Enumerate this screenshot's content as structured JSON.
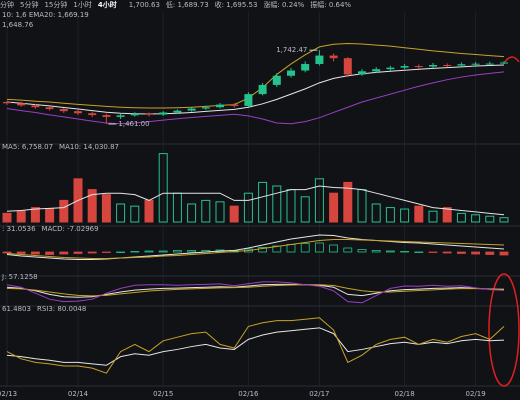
{
  "header": {
    "tabs": [
      "分钟",
      "5分钟",
      "15分钟",
      "1小时",
      "4小时"
    ],
    "stats": [
      "1,700.63",
      "低: 1,689.73",
      "收: 1,695.53",
      "涨幅: 0.24%",
      "振幅: 0.64%"
    ]
  },
  "chart_data": [
    {
      "type": "candlestick",
      "legend_texts": [
        "10: 1,6 EMA20: 1,669.19",
        "1,648.76"
      ],
      "up_color": "#26c28d",
      "down_color": "#d6463f",
      "categories": [
        "02/13",
        null,
        null,
        null,
        null,
        "02/14",
        null,
        null,
        null,
        null,
        null,
        "02/15",
        null,
        null,
        null,
        null,
        null,
        "02/16",
        null,
        null,
        null,
        null,
        "02/17",
        null,
        null,
        null,
        null,
        null,
        "02/18",
        null,
        null,
        null,
        null,
        "02/19",
        null,
        null
      ],
      "open": [
        1545,
        1540,
        1532,
        1525,
        1518,
        1510,
        1502,
        1495,
        1488,
        1494,
        1500,
        1497,
        1505,
        1512,
        1520,
        1525,
        1535,
        1530,
        1575,
        1610,
        1645,
        1665,
        1690,
        1722,
        1712,
        1650,
        1662,
        1670,
        1676,
        1682,
        1680,
        1686,
        1684,
        1689,
        1691,
        1691.47
      ],
      "high": [
        1550,
        1546,
        1538,
        1530,
        1522,
        1515,
        1508,
        1500,
        1499,
        1506,
        1505,
        1510,
        1517,
        1526,
        1531,
        1541,
        1540,
        1582,
        1618,
        1655,
        1675,
        1700,
        1742.47,
        1730,
        1716,
        1670,
        1678,
        1683,
        1690,
        1688,
        1694,
        1692,
        1696,
        1698,
        1699,
        1700.63
      ],
      "low": [
        1534,
        1527,
        1519,
        1512,
        1503,
        1495,
        1488,
        1461,
        1480,
        1489,
        1490,
        1492,
        1500,
        1508,
        1515,
        1520,
        1524,
        1526,
        1570,
        1602,
        1638,
        1658,
        1684,
        1700,
        1640,
        1645,
        1655,
        1664,
        1670,
        1672,
        1675,
        1678,
        1679,
        1683,
        1685,
        1689.73
      ],
      "close": [
        1540,
        1532,
        1525,
        1518,
        1510,
        1502,
        1495,
        1488,
        1494,
        1500,
        1497,
        1505,
        1512,
        1520,
        1525,
        1535,
        1530,
        1575,
        1610,
        1645,
        1665,
        1690,
        1722,
        1712,
        1650,
        1662,
        1670,
        1676,
        1682,
        1680,
        1686,
        1684,
        1689,
        1691,
        1691.47,
        1695.53
      ],
      "annotations": [
        {
          "label": "1,742.47",
          "value": 1742.47
        },
        {
          "label": "1,461.00",
          "value": 1461
        }
      ],
      "ylim": [
        1400,
        1850
      ],
      "series": [
        {
          "color": "#c9a227",
          "values": [
            1555,
            1552,
            1548,
            1545,
            1540,
            1536,
            1532,
            1528,
            1525,
            1523,
            1522,
            1522,
            1523,
            1525,
            1528,
            1532,
            1535,
            1560,
            1600,
            1650,
            1690,
            1725,
            1755,
            1765,
            1768,
            1766,
            1762,
            1758,
            1752,
            1746,
            1740,
            1735,
            1730,
            1726,
            1722,
            1718
          ]
        },
        {
          "color": "#e6e6e6",
          "values": [
            1545,
            1540,
            1535,
            1530,
            1524,
            1518,
            1512,
            1506,
            1502,
            1500,
            1499,
            1500,
            1502,
            1505,
            1509,
            1513,
            1517,
            1525,
            1538,
            1555,
            1575,
            1595,
            1618,
            1635,
            1645,
            1652,
            1658,
            1662,
            1666,
            1670,
            1673,
            1676,
            1679,
            1682,
            1684,
            1686
          ]
        },
        {
          "color": "#9b3fc4",
          "values": [
            1520,
            1512,
            1505,
            1496,
            1488,
            1480,
            1472,
            1465,
            1462,
            1465,
            1470,
            1476,
            1481,
            1486,
            1490,
            1494,
            1498,
            1492,
            1480,
            1465,
            1462,
            1470,
            1485,
            1505,
            1525,
            1545,
            1560,
            1575,
            1590,
            1605,
            1618,
            1630,
            1640,
            1648,
            1654,
            1660
          ]
        }
      ]
    },
    {
      "type": "volume",
      "legend_texts": [
        "MA5: 6,758.07",
        "MA10: 14,030.87"
      ],
      "ylim": [
        0,
        100
      ],
      "values": [
        12,
        15,
        20,
        18,
        30,
        60,
        45,
        38,
        25,
        22,
        30,
        95,
        40,
        25,
        30,
        28,
        22,
        40,
        55,
        50,
        45,
        35,
        60,
        40,
        55,
        45,
        25,
        20,
        18,
        22,
        15,
        20,
        12,
        10,
        8,
        6
      ],
      "series": [
        {
          "color": "#e6e6e6",
          "values": [
            15,
            16,
            18,
            19,
            20,
            30,
            38,
            40,
            40,
            38,
            30,
            40,
            40,
            40,
            40,
            40,
            30,
            30,
            35,
            40,
            45,
            45,
            50,
            48,
            47,
            45,
            40,
            35,
            30,
            25,
            20,
            18,
            16,
            14,
            12,
            10
          ]
        }
      ]
    },
    {
      "type": "macd",
      "legend_texts": [
        ": 31.0536",
        "MACD: -7.02969"
      ],
      "ylim": [
        -40,
        40
      ],
      "values": [
        -2,
        -3,
        -4,
        -5,
        -4,
        -3,
        -2,
        -1,
        0,
        1,
        2,
        2,
        3,
        3,
        3,
        4,
        3,
        6,
        9,
        12,
        15,
        17,
        18,
        14,
        8,
        5,
        3,
        2,
        1,
        0,
        -1,
        -2,
        -3,
        -4,
        -5,
        -6
      ],
      "series": [
        {
          "color": "#e6e6e6",
          "values": [
            -5,
            -8,
            -10,
            -12,
            -14,
            -15,
            -15,
            -14,
            -12,
            -10,
            -8,
            -6,
            -4,
            -2,
            0,
            2,
            3,
            8,
            14,
            20,
            26,
            30,
            34,
            33,
            28,
            25,
            23,
            21,
            19,
            18,
            16,
            14,
            12,
            10,
            8,
            6
          ]
        },
        {
          "color": "#c9a227",
          "values": [
            -3,
            -5,
            -7,
            -9,
            -11,
            -12,
            -13,
            -13,
            -12,
            -11,
            -10,
            -8,
            -7,
            -5,
            -3,
            -1,
            1,
            3,
            7,
            11,
            15,
            19,
            23,
            25,
            25,
            24,
            23,
            22,
            21,
            20,
            19,
            18,
            17,
            16,
            15,
            14
          ]
        }
      ]
    },
    {
      "type": "line",
      "legend_texts": [
        "J: 57.1258"
      ],
      "ylim": [
        0,
        100
      ],
      "series": [
        {
          "color": "#e6e6e6",
          "values": [
            70,
            65,
            55,
            40,
            30,
            28,
            30,
            40,
            50,
            58,
            62,
            65,
            66,
            68,
            70,
            72,
            70,
            75,
            80,
            82,
            82,
            80,
            78,
            70,
            40,
            35,
            45,
            55,
            60,
            62,
            65,
            66,
            68,
            65,
            62,
            60
          ]
        },
        {
          "color": "#c9a227",
          "values": [
            65,
            63,
            58,
            50,
            42,
            36,
            34,
            36,
            42,
            48,
            54,
            58,
            61,
            63,
            65,
            67,
            68,
            70,
            74,
            77,
            79,
            80,
            80,
            77,
            65,
            55,
            50,
            50,
            53,
            56,
            59,
            62,
            64,
            64,
            63,
            62
          ]
        },
        {
          "color": "#9b3fc4",
          "values": [
            80,
            70,
            45,
            20,
            10,
            12,
            20,
            45,
            65,
            78,
            80,
            80,
            78,
            80,
            82,
            84,
            76,
            85,
            92,
            92,
            88,
            80,
            74,
            55,
            10,
            5,
            35,
            65,
            75,
            74,
            78,
            74,
            76,
            67,
            60,
            57
          ]
        }
      ]
    },
    {
      "type": "line",
      "legend_texts": [
        "61.4803",
        "RSI3: 80.0048"
      ],
      "ylim": [
        0,
        100
      ],
      "series": [
        {
          "color": "#e6e6e6",
          "values": [
            40,
            38,
            35,
            33,
            30,
            30,
            28,
            26,
            38,
            42,
            40,
            45,
            48,
            52,
            55,
            50,
            48,
            62,
            68,
            72,
            74,
            76,
            78,
            70,
            45,
            48,
            52,
            56,
            58,
            55,
            58,
            56,
            60,
            62,
            60,
            61
          ]
        },
        {
          "color": "#c9a227",
          "values": [
            45,
            35,
            30,
            28,
            25,
            25,
            22,
            15,
            45,
            55,
            45,
            60,
            65,
            70,
            72,
            55,
            50,
            80,
            85,
            88,
            88,
            90,
            92,
            75,
            30,
            40,
            55,
            62,
            65,
            55,
            62,
            58,
            66,
            70,
            62,
            80
          ]
        }
      ]
    }
  ]
}
